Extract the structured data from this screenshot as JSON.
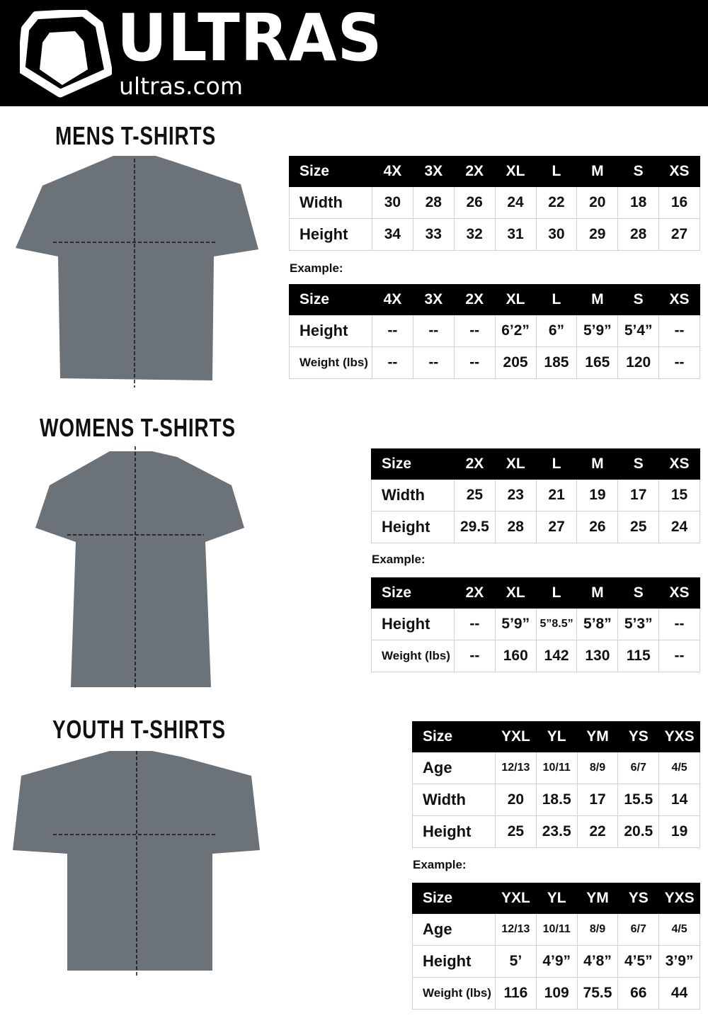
{
  "header": {
    "brand": "ULTRAS",
    "domain": "ultras.com"
  },
  "mens": {
    "title": "MENS  T-SHIRTS",
    "example_label": "Example:",
    "measure": {
      "headers": [
        "Size",
        "4X",
        "3X",
        "2X",
        "XL",
        "L",
        "M",
        "S",
        "XS"
      ],
      "rows": [
        [
          "Width",
          "30",
          "28",
          "26",
          "24",
          "22",
          "20",
          "18",
          "16"
        ],
        [
          "Height",
          "34",
          "33",
          "32",
          "31",
          "30",
          "29",
          "28",
          "27"
        ]
      ]
    },
    "example": {
      "headers": [
        "Size",
        "4X",
        "3X",
        "2X",
        "XL",
        "L",
        "M",
        "S",
        "XS"
      ],
      "rows": [
        [
          "Height",
          "--",
          "--",
          "--",
          "6’2”",
          "6”",
          "5’9”",
          "5’4”",
          "--"
        ],
        [
          "Weight (lbs)",
          "--",
          "--",
          "--",
          "205",
          "185",
          "165",
          "120",
          "--"
        ]
      ]
    }
  },
  "womens": {
    "title": "WOMENS  T-SHIRTS",
    "example_label": "Example:",
    "measure": {
      "headers": [
        "Size",
        "2X",
        "XL",
        "L",
        "M",
        "S",
        "XS"
      ],
      "rows": [
        [
          "Width",
          "25",
          "23",
          "21",
          "19",
          "17",
          "15"
        ],
        [
          "Height",
          "29.5",
          "28",
          "27",
          "26",
          "25",
          "24"
        ]
      ]
    },
    "example": {
      "headers": [
        "Size",
        "2X",
        "XL",
        "L",
        "M",
        "S",
        "XS"
      ],
      "rows": [
        [
          "Height",
          "--",
          "5’9”",
          "5”8.5”",
          "5’8”",
          "5’3”",
          "--"
        ],
        [
          "Weight (lbs)",
          "--",
          "160",
          "142",
          "130",
          "115",
          "--"
        ]
      ]
    }
  },
  "youth": {
    "title": "YOUTH  T-SHIRTS",
    "example_label": "Example:",
    "measure": {
      "headers": [
        "Size",
        "YXL",
        "YL",
        "YM",
        "YS",
        "YXS"
      ],
      "rows": [
        [
          "Age",
          "12/13",
          "10/11",
          "8/9",
          "6/7",
          "4/5"
        ],
        [
          "Width",
          "20",
          "18.5",
          "17",
          "15.5",
          "14"
        ],
        [
          "Height",
          "25",
          "23.5",
          "22",
          "20.5",
          "19"
        ]
      ]
    },
    "example": {
      "headers": [
        "Size",
        "YXL",
        "YL",
        "YM",
        "YS",
        "YXS"
      ],
      "rows": [
        [
          "Age",
          "12/13",
          "10/11",
          "8/9",
          "6/7",
          "4/5"
        ],
        [
          "Height",
          "5’",
          "4’9”",
          "4’8”",
          "4’5”",
          "3’9”"
        ],
        [
          "Weight (lbs)",
          "116",
          "109",
          "75.5",
          "66",
          "44"
        ]
      ]
    }
  },
  "colors": {
    "header_bg": "#000000",
    "shirt": "#6b7278"
  }
}
